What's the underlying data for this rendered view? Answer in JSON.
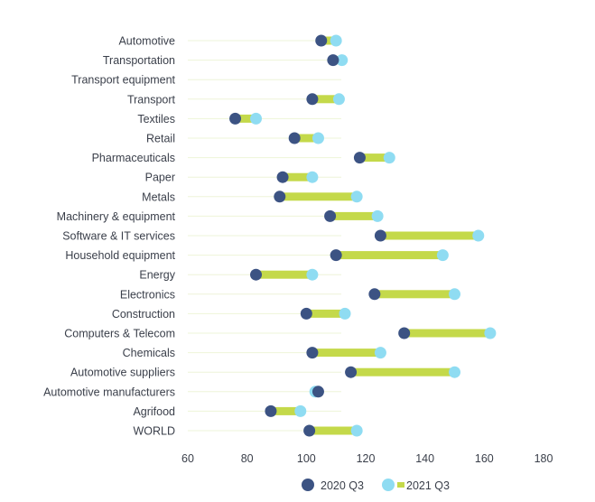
{
  "colors": {
    "bar": "#c4d94a",
    "q2020": "#3c5383",
    "q2021": "#8fdcf2",
    "grid": "#eef4d8",
    "text": "#3a3f4a"
  },
  "legend": {
    "q2020_label": "2020 Q3",
    "q2021_label": "2021 Q3"
  },
  "chart_data": {
    "type": "dumbbell",
    "categories": [
      "Automotive",
      "Transportation",
      "Transport equipment",
      "Transport",
      "Textiles",
      "Retail",
      "Pharmaceuticals",
      "Paper",
      "Metals",
      "Machinery & equipment",
      "Software & IT services",
      "Household equipment",
      "Energy",
      "Electronics",
      "Construction",
      "Computers & Telecom",
      "Chemicals",
      "Automotive suppliers",
      "Automotive manufacturers",
      "Agrifood",
      "WORLD"
    ],
    "series": [
      {
        "name": "2020 Q3",
        "values": [
          105,
          109,
          null,
          102,
          76,
          96,
          118,
          92,
          91,
          108,
          125,
          110,
          83,
          123,
          100,
          133,
          102,
          115,
          104,
          88,
          101
        ]
      },
      {
        "name": "2021 Q3",
        "values": [
          110,
          112,
          null,
          111,
          83,
          104,
          128,
          102,
          117,
          124,
          158,
          146,
          102,
          150,
          113,
          162,
          125,
          150,
          103,
          98,
          117
        ]
      }
    ],
    "xlim": [
      60,
      180
    ],
    "xticks": [
      60,
      80,
      100,
      120,
      140,
      160,
      180
    ],
    "legend_position": "bottom"
  }
}
